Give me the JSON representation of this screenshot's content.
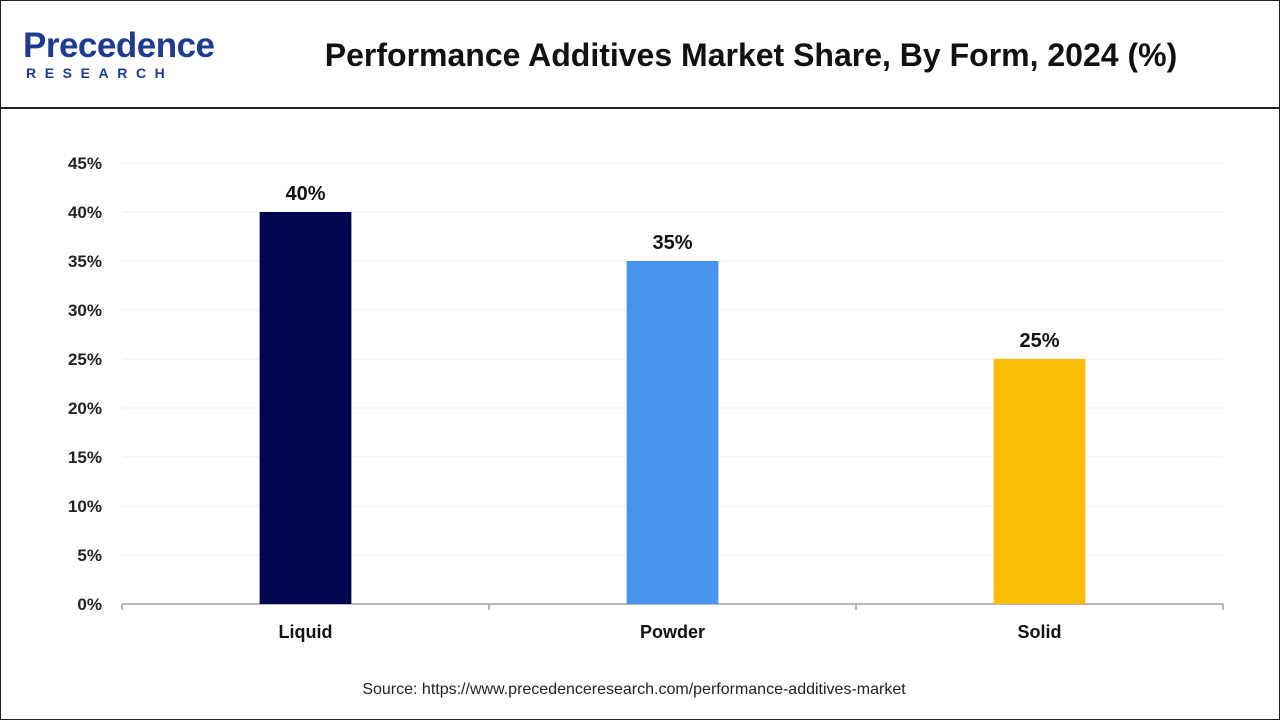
{
  "brand": {
    "logo_word": "Precedence",
    "logo_sub": "RESEARCH",
    "color": "#1f3b8f"
  },
  "title": "Performance Additives Market Share, By Form, 2024 (%)",
  "source": "Source: https://www.precedenceresearch.com/performance-additives-market",
  "chart_data": {
    "type": "bar",
    "title": "Performance Additives Market Share, By Form, 2024 (%)",
    "categories": [
      "Liquid",
      "Powder",
      "Solid"
    ],
    "values": [
      40,
      35,
      25
    ],
    "data_labels": [
      "40%",
      "35%",
      "25%"
    ],
    "colors": [
      "#02064f",
      "#4893ee",
      "#fbbd07"
    ],
    "ylim": [
      0,
      45
    ],
    "yticks": [
      0,
      5,
      10,
      15,
      20,
      25,
      30,
      35,
      40,
      45
    ],
    "ytick_labels": [
      "0%",
      "5%",
      "10%",
      "15%",
      "20%",
      "25%",
      "30%",
      "35%",
      "40%",
      "45%"
    ],
    "xlabel": "",
    "ylabel": "",
    "grid": true,
    "legend": "none"
  }
}
